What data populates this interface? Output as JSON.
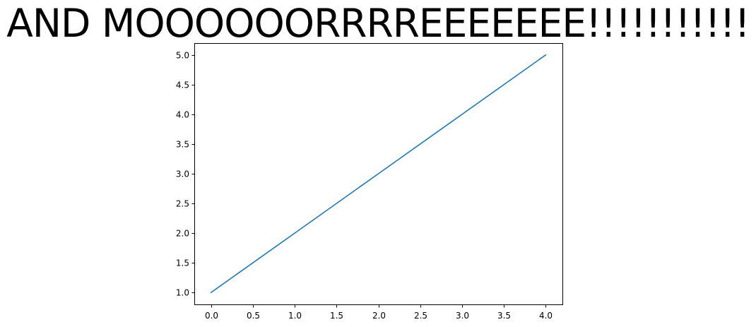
{
  "chart_data": {
    "type": "line",
    "title": "AND MOOOOOORRRREEEEEEE!!!!!!!!!!!",
    "xlabel": "",
    "ylabel": "",
    "x": [
      0,
      1,
      2,
      3,
      4
    ],
    "series": [
      {
        "values": [
          1,
          2,
          3,
          4,
          5
        ],
        "color": "#1f77b4"
      }
    ],
    "xlim": [
      -0.2,
      4.2
    ],
    "ylim": [
      0.8,
      5.2
    ],
    "xticks": [
      0.0,
      0.5,
      1.0,
      1.5,
      2.0,
      2.5,
      3.0,
      3.5,
      4.0
    ],
    "xtick_labels": [
      "0.0",
      "0.5",
      "1.0",
      "1.5",
      "2.0",
      "2.5",
      "3.0",
      "3.5",
      "4.0"
    ],
    "yticks": [
      1.0,
      1.5,
      2.0,
      2.5,
      3.0,
      3.5,
      4.0,
      4.5,
      5.0
    ],
    "ytick_labels": [
      "1.0",
      "1.5",
      "2.0",
      "2.5",
      "3.0",
      "3.5",
      "4.0",
      "4.5",
      "5.0"
    ],
    "grid": false,
    "legend": "none"
  }
}
